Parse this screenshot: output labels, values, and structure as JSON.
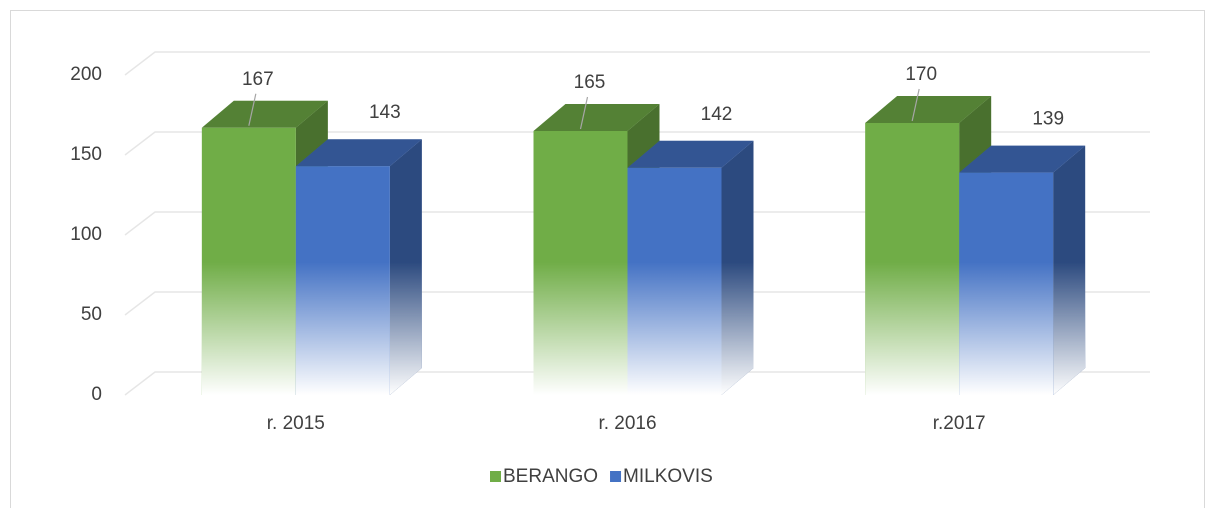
{
  "chart_data": {
    "type": "bar3d",
    "categories": [
      "r. 2015",
      "r. 2016",
      "r.2017"
    ],
    "series": [
      {
        "name": "BERANGO",
        "color": "#70ad47",
        "values": [
          167,
          165,
          170
        ]
      },
      {
        "name": "MILKOVIS",
        "color": "#4472c4",
        "values": [
          143,
          142,
          139
        ]
      }
    ],
    "ylim": [
      0,
      200
    ],
    "yticks": [
      0,
      50,
      100,
      150,
      200
    ],
    "grid": true,
    "legend": "bottom"
  }
}
